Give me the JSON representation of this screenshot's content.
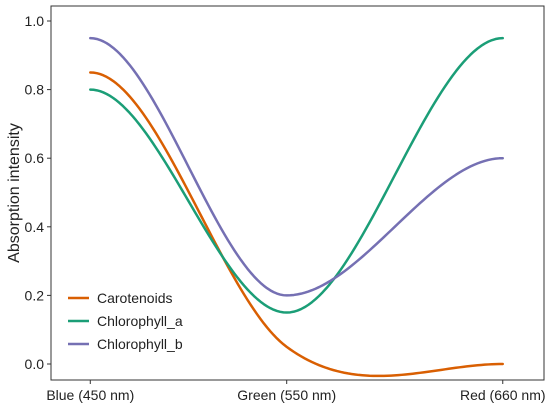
{
  "chart_data": {
    "type": "line",
    "title": "",
    "xlabel": "",
    "ylabel": "Absorption intensity",
    "categories": [
      "Blue (450 nm)",
      "Green (550 nm)",
      "Red (660 nm)"
    ],
    "x_values": [
      450,
      550,
      660
    ],
    "ylim": [
      0,
      1.0
    ],
    "yticks": [
      "0.0",
      "0.2",
      "0.4",
      "0.6",
      "0.8",
      "1.0"
    ],
    "grid": false,
    "legend_position": "bottom-left",
    "series": [
      {
        "name": "Carotenoids",
        "color": "#d95f02",
        "values": [
          0.85,
          0.05,
          0.0
        ]
      },
      {
        "name": "Chlorophyll_a",
        "color": "#1b9e77",
        "values": [
          0.8,
          0.15,
          0.95
        ]
      },
      {
        "name": "Chlorophyll_b",
        "color": "#7570b3",
        "values": [
          0.95,
          0.2,
          0.6
        ]
      }
    ]
  }
}
